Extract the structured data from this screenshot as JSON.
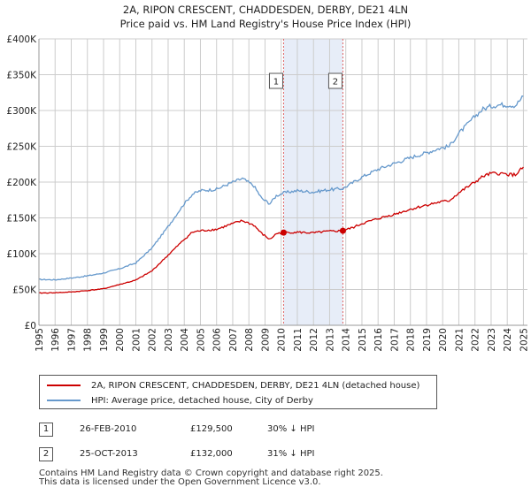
{
  "chart_data": {
    "type": "line",
    "title": "2A, RIPON CRESCENT, CHADDESDEN, DERBY, DE21 4LN",
    "subtitle": "Price paid vs. HM Land Registry's House Price Index (HPI)",
    "ylim": [
      0,
      400000
    ],
    "xlim": [
      1995,
      2025.25
    ],
    "y_ticks": [
      {
        "value": 0,
        "label": "£0"
      },
      {
        "value": 50000,
        "label": "£50K"
      },
      {
        "value": 100000,
        "label": "£100K"
      },
      {
        "value": 150000,
        "label": "£150K"
      },
      {
        "value": 200000,
        "label": "£200K"
      },
      {
        "value": 250000,
        "label": "£250K"
      },
      {
        "value": 300000,
        "label": "£300K"
      },
      {
        "value": 350000,
        "label": "£350K"
      },
      {
        "value": 400000,
        "label": "£400K"
      }
    ],
    "x_ticks": [
      "1995",
      "1996",
      "1997",
      "1998",
      "1999",
      "2000",
      "2001",
      "2002",
      "2003",
      "2004",
      "2005",
      "2006",
      "2007",
      "2008",
      "2009",
      "2010",
      "2011",
      "2012",
      "2013",
      "2014",
      "2015",
      "2016",
      "2017",
      "2018",
      "2019",
      "2020",
      "2021",
      "2022",
      "2023",
      "2024",
      "2025"
    ],
    "shaded_region": [
      2010.15,
      2013.82
    ],
    "series": [
      {
        "name": "2A, RIPON CRESCENT, CHADDESDEN, DERBY, DE21 4LN (detached house)",
        "color": "#cc0000",
        "points": [
          [
            1995,
            45000
          ],
          [
            1996,
            45500
          ],
          [
            1997,
            46500
          ],
          [
            1998,
            48500
          ],
          [
            1999,
            51000
          ],
          [
            2000,
            57000
          ],
          [
            2001,
            63000
          ],
          [
            2002,
            76000
          ],
          [
            2003,
            98000
          ],
          [
            2004,
            120000
          ],
          [
            2004.5,
            130000
          ],
          [
            2005,
            132000
          ],
          [
            2006,
            134000
          ],
          [
            2007,
            142000
          ],
          [
            2007.6,
            146000
          ],
          [
            2008.3,
            140000
          ],
          [
            2008.8,
            128000
          ],
          [
            2009.3,
            120000
          ],
          [
            2009.7,
            128000
          ],
          [
            2010.15,
            129500
          ],
          [
            2011,
            130000
          ],
          [
            2012,
            129000
          ],
          [
            2012.8,
            131000
          ],
          [
            2013.82,
            132000
          ],
          [
            2014.5,
            137000
          ],
          [
            2015,
            142000
          ],
          [
            2016,
            149000
          ],
          [
            2017,
            155000
          ],
          [
            2018,
            162000
          ],
          [
            2019,
            168000
          ],
          [
            2019.8,
            172000
          ],
          [
            2020.4,
            174000
          ],
          [
            2021,
            185000
          ],
          [
            2022,
            200000
          ],
          [
            2022.5,
            208000
          ],
          [
            2023,
            212000
          ],
          [
            2023.5,
            212000
          ],
          [
            2024,
            211000
          ],
          [
            2024.5,
            210000
          ],
          [
            2025,
            221000
          ]
        ]
      },
      {
        "name": "HPI: Average price, detached house, City of Derby",
        "color": "#6699cc",
        "points": [
          [
            1995,
            64000
          ],
          [
            1996,
            63500
          ],
          [
            1997,
            66000
          ],
          [
            1998,
            69000
          ],
          [
            1999,
            73000
          ],
          [
            2000,
            79000
          ],
          [
            2001,
            87000
          ],
          [
            2002,
            108000
          ],
          [
            2003,
            138000
          ],
          [
            2004,
            170000
          ],
          [
            2004.5,
            183000
          ],
          [
            2005,
            188000
          ],
          [
            2006,
            190000
          ],
          [
            2007,
            200000
          ],
          [
            2007.6,
            205000
          ],
          [
            2008.3,
            195000
          ],
          [
            2008.8,
            177000
          ],
          [
            2009.3,
            170000
          ],
          [
            2009.7,
            181000
          ],
          [
            2010.15,
            185000
          ],
          [
            2011,
            188000
          ],
          [
            2012,
            186000
          ],
          [
            2012.8,
            189000
          ],
          [
            2013.82,
            191000
          ],
          [
            2014.5,
            200000
          ],
          [
            2015,
            207000
          ],
          [
            2016,
            218000
          ],
          [
            2017,
            226000
          ],
          [
            2018,
            234000
          ],
          [
            2019,
            241000
          ],
          [
            2019.8,
            247000
          ],
          [
            2020.4,
            250000
          ],
          [
            2021,
            268000
          ],
          [
            2022,
            292000
          ],
          [
            2022.5,
            302000
          ],
          [
            2023,
            306000
          ],
          [
            2023.5,
            308000
          ],
          [
            2024,
            308000
          ],
          [
            2024.5,
            307000
          ],
          [
            2025,
            320000
          ]
        ]
      }
    ],
    "sales": [
      {
        "marker": "1",
        "x": 2010.15,
        "price": 129500
      },
      {
        "marker": "2",
        "x": 2013.82,
        "price": 132000
      }
    ]
  },
  "legend": {
    "property_label": "2A, RIPON CRESCENT, CHADDESDEN, DERBY, DE21 4LN (detached house)",
    "hpi_label": "HPI: Average price, detached house, City of Derby",
    "property_color": "#cc0000",
    "hpi_color": "#6699cc"
  },
  "sales_table": [
    {
      "num": "1",
      "date": "26-FEB-2010",
      "price": "£129,500",
      "hpi": "30% ↓ HPI"
    },
    {
      "num": "2",
      "date": "25-OCT-2013",
      "price": "£132,000",
      "hpi": "31% ↓ HPI"
    }
  ],
  "footer": {
    "line1": "Contains HM Land Registry data © Crown copyright and database right 2025.",
    "line2": "This data is licensed under the Open Government Licence v3.0."
  }
}
